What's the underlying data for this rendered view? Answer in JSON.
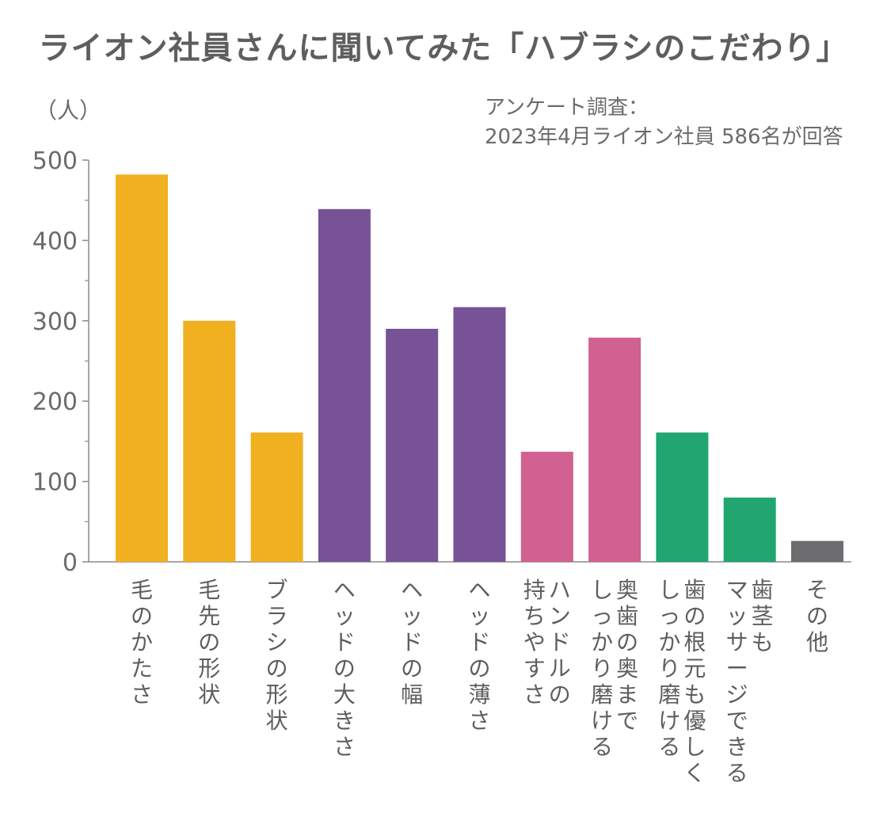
{
  "chart_data": {
    "type": "bar",
    "title": "ライオン社員さんに聞いてみた「ハブラシのこだわり」",
    "ylabel": "（人）",
    "note_lines": [
      "アンケート調査：",
      "2023年4月ライオン社員 586名が回答"
    ],
    "ylim": [
      0,
      500
    ],
    "yticks": [
      "0",
      "100",
      "200",
      "300",
      "400",
      "500"
    ],
    "grid": false,
    "categories": [
      "毛のかたさ",
      "毛先の形状",
      "ブラシの形状",
      "ヘッドの大きさ",
      "ヘッドの幅",
      "ヘッドの薄さ",
      "ハンドルの持ちやすさ",
      "奥歯の奥までしっかり磨ける",
      "歯の根元も優しくしっかり磨ける",
      "歯茎もマッサージできる",
      "その他"
    ],
    "category_lines": [
      [
        "毛のかたさ"
      ],
      [
        "毛先の形状"
      ],
      [
        "ブラシの形状"
      ],
      [
        "ヘッドの大きさ"
      ],
      [
        "ヘッドの幅"
      ],
      [
        "ヘッドの薄さ"
      ],
      [
        "ハンドルの",
        "持ちやすさ"
      ],
      [
        "奥歯の奥まで",
        "しっかり磨ける"
      ],
      [
        "歯の根元も優しく",
        "しっかり磨ける"
      ],
      [
        "歯茎も",
        "マッサージできる"
      ],
      [
        "その他"
      ]
    ],
    "values": [
      482,
      300,
      161,
      439,
      290,
      317,
      137,
      279,
      161,
      80,
      26
    ],
    "colors": [
      "#f0b020",
      "#f0b020",
      "#f0b020",
      "#775296",
      "#775296",
      "#775296",
      "#d06190",
      "#d06190",
      "#20a66e",
      "#20a66e",
      "#6d6d6f"
    ]
  }
}
